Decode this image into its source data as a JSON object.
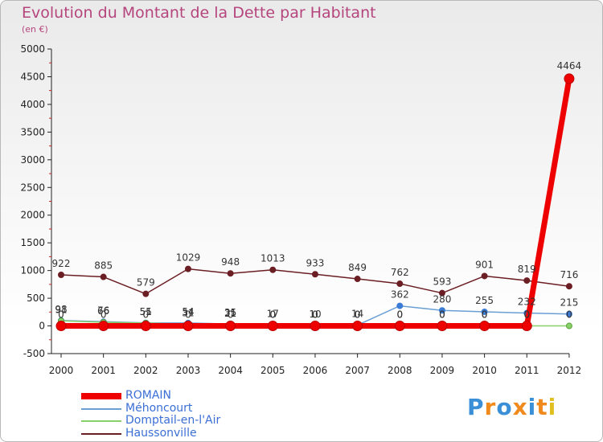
{
  "title": "Evolution du Montant de la Dette par Habitant",
  "subtitle": "(en €)",
  "logo_text": "Proxiti",
  "colors": {
    "title": "#b5457d",
    "axis_text": "#222222",
    "legend_text": "#3b6fd6"
  },
  "chart_data": {
    "type": "line",
    "x": [
      "2000",
      "2001",
      "2002",
      "2003",
      "2004",
      "2005",
      "2006",
      "2007",
      "2008",
      "2009",
      "2010",
      "2011",
      "2012"
    ],
    "ylim": [
      -500,
      5000
    ],
    "yticks": [
      "-500",
      "0",
      "500",
      "1000",
      "1500",
      "2000",
      "2500",
      "3000",
      "3500",
      "4000",
      "4500",
      "5000"
    ],
    "grid": false,
    "legend_position": "bottom-left",
    "series": [
      {
        "name": "ROMAIN",
        "color": "#ee0000",
        "values": [
          0,
          0,
          0,
          0,
          0,
          0,
          0,
          0,
          0,
          0,
          0,
          0,
          4464
        ],
        "labels": [
          "0",
          "0",
          "0",
          "0",
          "0",
          "0",
          "0",
          "0",
          "0",
          "0",
          "0",
          "0",
          "4464"
        ]
      },
      {
        "name": "Méhoncourt",
        "color": "#6a9fd4",
        "values": [
          98,
          76,
          55,
          54,
          35,
          17,
          10,
          14,
          362,
          280,
          255,
          232,
          215
        ],
        "labels": [
          "98",
          "76",
          "55",
          "54",
          "35",
          "17",
          "10",
          "14",
          "362",
          "280",
          "255",
          "232",
          "215"
        ]
      },
      {
        "name": "Domptail-en-l'Air",
        "color": "#88d068",
        "values": [
          91,
          66,
          51,
          31,
          21,
          0,
          0,
          0,
          0,
          0,
          0,
          0,
          0
        ],
        "labels": [
          "91",
          "66",
          "51",
          "31",
          "21",
          "0",
          "0",
          "0",
          "0",
          "0",
          "0",
          "0",
          "0"
        ]
      },
      {
        "name": "Haussonville",
        "color": "#6b1f24",
        "values": [
          922,
          885,
          579,
          1029,
          948,
          1013,
          933,
          849,
          762,
          593,
          901,
          819,
          716
        ],
        "labels": [
          "922",
          "885",
          "579",
          "1029",
          "948",
          "1013",
          "933",
          "849",
          "762",
          "593",
          "901",
          "819",
          "716"
        ]
      }
    ]
  }
}
